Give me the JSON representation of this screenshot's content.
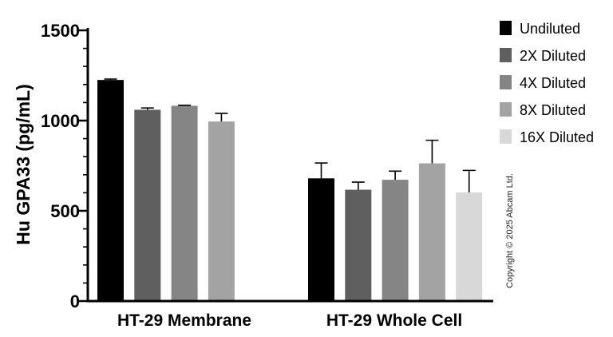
{
  "chart_data": {
    "type": "bar",
    "title": "",
    "xlabel": "",
    "ylabel": "Hu GPA33 (pg/mL)",
    "ylim": [
      0,
      1500
    ],
    "yticks": [
      0,
      500,
      1000,
      1500
    ],
    "minor_ticks_per_interval": 4,
    "groups": [
      "HT-29 Membrane",
      "HT-29 Whole Cell"
    ],
    "series": [
      {
        "name": "Undiluted",
        "color": "#000000",
        "values": [
          1225,
          680
        ],
        "errors": [
          5,
          85
        ]
      },
      {
        "name": "2X Diluted",
        "color": "#5f5f5f",
        "values": [
          1060,
          617
        ],
        "errors": [
          10,
          42
        ]
      },
      {
        "name": "4X Diluted",
        "color": "#858585",
        "values": [
          1082,
          672
        ],
        "errors": [
          3,
          48
        ]
      },
      {
        "name": "8X Diluted",
        "color": "#a3a3a3",
        "values": [
          995,
          763
        ],
        "errors": [
          45,
          128
        ]
      },
      {
        "name": "16X Diluted",
        "color": "#d8d8d8",
        "values": [
          null,
          602
        ],
        "errors": [
          null,
          122
        ]
      }
    ],
    "legend_position": "top-right"
  },
  "copyright": "Copyright © 2025 Abcam Ltd."
}
